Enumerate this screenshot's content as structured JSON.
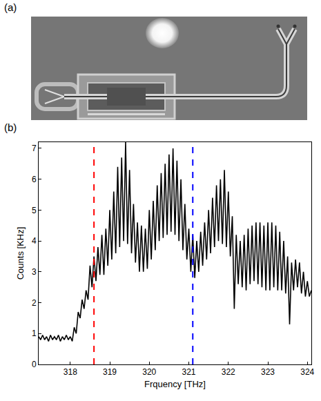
{
  "labels": [
    "(a)",
    "(b)"
  ],
  "chart_data": {
    "type": "line",
    "x_label": "Frquency [THz]",
    "y_label": "Counts [KHz]",
    "x": [
      317.2,
      317.25,
      317.3,
      317.35,
      317.4,
      317.45,
      317.5,
      317.55,
      317.6,
      317.65,
      317.7,
      317.75,
      317.8,
      317.85,
      317.9,
      317.95,
      318.0,
      318.05,
      318.1,
      318.15,
      318.2,
      318.25,
      318.3,
      318.35,
      318.4,
      318.45,
      318.5,
      318.55,
      318.6,
      318.65,
      318.7,
      318.75,
      318.8,
      318.85,
      318.9,
      318.95,
      319.0,
      319.05,
      319.1,
      319.15,
      319.2,
      319.25,
      319.3,
      319.35,
      319.4,
      319.45,
      319.5,
      319.55,
      319.6,
      319.65,
      319.7,
      319.75,
      319.8,
      319.85,
      319.9,
      319.95,
      320.0,
      320.05,
      320.1,
      320.15,
      320.2,
      320.25,
      320.3,
      320.35,
      320.4,
      320.45,
      320.5,
      320.55,
      320.6,
      320.65,
      320.7,
      320.75,
      320.8,
      320.85,
      320.9,
      320.95,
      321.0,
      321.05,
      321.1,
      321.15,
      321.2,
      321.25,
      321.3,
      321.35,
      321.4,
      321.45,
      321.5,
      321.55,
      321.6,
      321.65,
      321.7,
      321.75,
      321.8,
      321.85,
      321.9,
      321.95,
      322.0,
      322.05,
      322.1,
      322.15,
      322.2,
      322.25,
      322.3,
      322.35,
      322.4,
      322.45,
      322.5,
      322.55,
      322.6,
      322.65,
      322.7,
      322.75,
      322.8,
      322.85,
      322.9,
      322.95,
      323.0,
      323.05,
      323.1,
      323.15,
      323.2,
      323.25,
      323.3,
      323.35,
      323.4,
      323.45,
      323.5,
      323.55,
      323.6,
      323.65,
      323.7,
      323.75,
      323.8,
      323.85,
      323.9,
      323.95,
      324.0,
      324.05,
      324.1
    ],
    "values": [
      0.9,
      0.8,
      0.95,
      0.8,
      0.9,
      0.75,
      0.95,
      0.8,
      0.9,
      0.8,
      0.95,
      0.75,
      0.9,
      0.8,
      0.95,
      0.8,
      0.9,
      0.75,
      1.2,
      1.0,
      1.7,
      1.5,
      2.1,
      1.8,
      2.4,
      2.1,
      3.2,
      2.5,
      3.5,
      2.7,
      3.8,
      2.9,
      4.2,
      2.9,
      4.4,
      3.2,
      5.0,
      3.4,
      5.6,
      3.6,
      6.4,
      3.8,
      6.7,
      4.0,
      7.2,
      3.9,
      6.3,
      3.6,
      5.2,
      3.3,
      4.6,
      3.0,
      4.5,
      3.0,
      4.4,
      3.1,
      5.0,
      3.4,
      5.3,
      3.7,
      5.8,
      4.0,
      6.2,
      4.1,
      6.5,
      4.2,
      6.8,
      4.3,
      7.0,
      4.2,
      6.6,
      4.0,
      6.0,
      3.7,
      5.2,
      3.4,
      4.4,
      3.0,
      4.2,
      2.8,
      4.0,
      3.0,
      4.3,
      3.2,
      4.6,
      3.4,
      5.0,
      3.6,
      5.4,
      3.8,
      5.8,
      4.0,
      6.0,
      3.9,
      6.3,
      3.8,
      5.6,
      3.5,
      4.8,
      1.8,
      4.2,
      2.6,
      4.0,
      2.5,
      4.2,
      2.4,
      4.4,
      2.6,
      4.5,
      2.7,
      4.6,
      2.6,
      4.6,
      2.5,
      4.5,
      2.4,
      4.6,
      2.4,
      4.6,
      2.5,
      4.5,
      2.4,
      4.3,
      2.4,
      4.0,
      2.3,
      3.5,
      1.3,
      3.3,
      2.4,
      3.4,
      2.5,
      3.3,
      2.3,
      3.0,
      2.2,
      2.7,
      2.2,
      2.4
    ],
    "color": "#000000",
    "xlim": [
      317.2,
      324.1
    ],
    "xticks": [
      318,
      319,
      320,
      321,
      322,
      323,
      324
    ],
    "ylim": [
      0,
      7.2
    ],
    "yticks": [
      0,
      1,
      2,
      3,
      4,
      5,
      6,
      7
    ],
    "grid": false,
    "vlines": [
      {
        "x": 318.6,
        "color": "#ff0000",
        "line_style": "dashed"
      },
      {
        "x": 321.1,
        "color": "#0000ff",
        "line_style": "dashed"
      }
    ]
  }
}
